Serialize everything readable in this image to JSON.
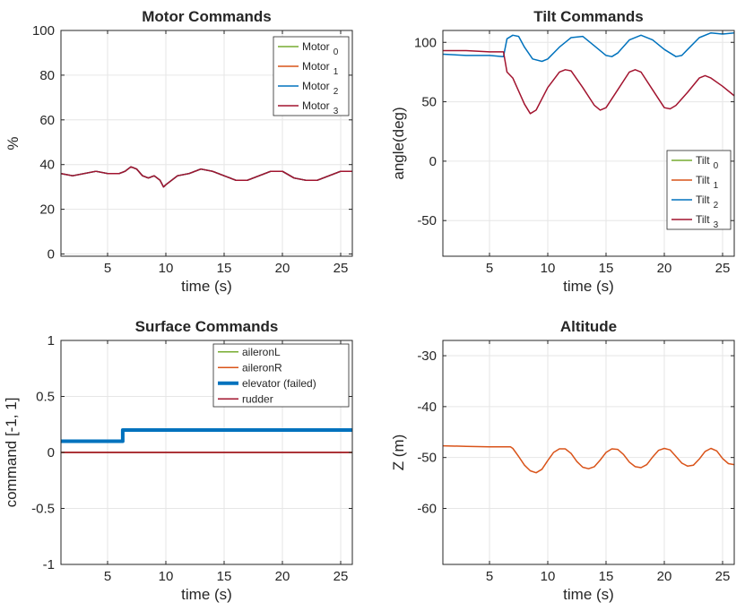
{
  "chart_data": [
    {
      "id": "motor",
      "type": "line",
      "title": "Motor Commands",
      "xlabel": "time (s)",
      "ylabel": "%",
      "xlim": [
        1,
        26
      ],
      "ylim": [
        -1,
        100
      ],
      "xticks": [
        5,
        10,
        15,
        20,
        25
      ],
      "xtick_labels": [
        "5",
        "10",
        "15",
        "20",
        "25"
      ],
      "yticks": [
        0,
        20,
        40,
        60,
        80,
        100
      ],
      "ytick_labels": [
        "0",
        "20",
        "40",
        "60",
        "80",
        "100"
      ],
      "legend_position": "top-right",
      "series": [
        {
          "name": "Motor",
          "sub": "0",
          "color": "#77AC30",
          "width": 1.5,
          "x": [
            1,
            2,
            3,
            4,
            5,
            6,
            6.5,
            7,
            7.5,
            8,
            8.5,
            9,
            9.5,
            9.8,
            10,
            10.5,
            11,
            12,
            13,
            14,
            15,
            16,
            17,
            18,
            19,
            20,
            21,
            22,
            23,
            24,
            25,
            26
          ],
          "y": [
            36,
            35,
            36,
            37,
            36,
            36,
            37,
            39,
            38,
            35,
            34,
            35,
            33,
            30,
            31,
            33,
            35,
            36,
            38,
            37,
            35,
            33,
            33,
            35,
            37,
            37,
            34,
            33,
            33,
            35,
            37,
            37
          ]
        },
        {
          "name": "Motor",
          "sub": "1",
          "color": "#D95319",
          "width": 1.5,
          "x": [
            1,
            2,
            3,
            4,
            5,
            6,
            6.5,
            7,
            7.5,
            8,
            8.5,
            9,
            9.5,
            9.8,
            10,
            10.5,
            11,
            12,
            13,
            14,
            15,
            16,
            17,
            18,
            19,
            20,
            21,
            22,
            23,
            24,
            25,
            26
          ],
          "y": [
            36,
            35,
            36,
            37,
            36,
            36,
            37,
            39,
            38,
            35,
            34,
            35,
            33,
            30,
            31,
            33,
            35,
            36,
            38,
            37,
            35,
            33,
            33,
            35,
            37,
            37,
            34,
            33,
            33,
            35,
            37,
            37
          ]
        },
        {
          "name": "Motor",
          "sub": "2",
          "color": "#0072BD",
          "width": 1.5,
          "x": [
            1,
            2,
            3,
            4,
            5,
            6,
            6.5,
            7,
            7.5,
            8,
            8.5,
            9,
            9.5,
            9.8,
            10,
            10.5,
            11,
            12,
            13,
            14,
            15,
            16,
            17,
            18,
            19,
            20,
            21,
            22,
            23,
            24,
            25,
            26
          ],
          "y": [
            36,
            35,
            36,
            37,
            36,
            36,
            37,
            39,
            38,
            35,
            34,
            35,
            33,
            30,
            31,
            33,
            35,
            36,
            38,
            37,
            35,
            33,
            33,
            35,
            37,
            37,
            34,
            33,
            33,
            35,
            37,
            37
          ]
        },
        {
          "name": "Motor",
          "sub": "3",
          "color": "#A2142F",
          "width": 1.5,
          "x": [
            1,
            2,
            3,
            4,
            5,
            6,
            6.5,
            7,
            7.5,
            8,
            8.5,
            9,
            9.5,
            9.8,
            10,
            10.5,
            11,
            12,
            13,
            14,
            15,
            16,
            17,
            18,
            19,
            20,
            21,
            22,
            23,
            24,
            25,
            26
          ],
          "y": [
            36,
            35,
            36,
            37,
            36,
            36,
            37,
            39,
            38,
            35,
            34,
            35,
            33,
            30,
            31,
            33,
            35,
            36,
            38,
            37,
            35,
            33,
            33,
            35,
            37,
            37,
            34,
            33,
            33,
            35,
            37,
            37
          ]
        }
      ]
    },
    {
      "id": "tilt",
      "type": "line",
      "title": "Tilt Commands",
      "xlabel": "time (s)",
      "ylabel": "angle(deg)",
      "xlim": [
        1,
        26
      ],
      "ylim": [
        -80,
        110
      ],
      "xticks": [
        5,
        10,
        15,
        20,
        25
      ],
      "xtick_labels": [
        "5",
        "10",
        "15",
        "20",
        "25"
      ],
      "yticks": [
        -50,
        0,
        50,
        100
      ],
      "ytick_labels": [
        "-50",
        "0",
        "50",
        "100"
      ],
      "legend_position": "bottom-right",
      "series": [
        {
          "name": "Tilt",
          "sub": "0",
          "color": "#77AC30",
          "width": 1.5,
          "x": [],
          "y": []
        },
        {
          "name": "Tilt",
          "sub": "1",
          "color": "#D95319",
          "width": 1.5,
          "x": [],
          "y": []
        },
        {
          "name": "Tilt",
          "sub": "2",
          "color": "#0072BD",
          "width": 1.5,
          "x": [
            1,
            3,
            5,
            6.2,
            6.5,
            7,
            7.5,
            8,
            8.7,
            9.5,
            10,
            11,
            12,
            13,
            14,
            15,
            15.5,
            16,
            17,
            18,
            19,
            20,
            21,
            21.5,
            22,
            23,
            24,
            25,
            26
          ],
          "y": [
            90,
            89,
            89,
            88,
            103,
            106,
            105,
            96,
            86,
            84,
            86,
            96,
            104,
            105,
            97,
            89,
            88,
            91,
            102,
            106,
            102,
            94,
            88,
            89,
            94,
            104,
            108,
            107,
            108
          ]
        },
        {
          "name": "Tilt",
          "sub": "3",
          "color": "#A2142F",
          "width": 1.5,
          "x": [
            1,
            3,
            5,
            6.2,
            6.5,
            7,
            8,
            8.5,
            9,
            10,
            11,
            11.5,
            12,
            13,
            14,
            14.5,
            15,
            16,
            17,
            17.5,
            18,
            19,
            20,
            20.5,
            21,
            22,
            23,
            23.5,
            24,
            25,
            26
          ],
          "y": [
            93,
            93,
            92,
            92,
            75,
            70,
            48,
            40,
            43,
            62,
            75,
            77,
            76,
            62,
            47,
            43,
            45,
            60,
            75,
            77,
            75,
            60,
            45,
            44,
            47,
            58,
            70,
            72,
            70,
            63,
            55
          ]
        }
      ]
    },
    {
      "id": "surface",
      "type": "line",
      "title": "Surface Commands",
      "xlabel": "time (s)",
      "ylabel": "command [-1, 1]",
      "xlim": [
        1,
        26
      ],
      "ylim": [
        -1,
        1
      ],
      "xticks": [
        5,
        10,
        15,
        20,
        25
      ],
      "xtick_labels": [
        "5",
        "10",
        "15",
        "20",
        "25"
      ],
      "yticks": [
        -1,
        -0.5,
        0,
        0.5,
        1
      ],
      "ytick_labels": [
        "-1",
        "-0.5",
        "0",
        "0.5",
        "1"
      ],
      "legend_position": "top-right",
      "series": [
        {
          "name": "aileronL",
          "sub": "",
          "color": "#77AC30",
          "width": 1.5,
          "x": [
            1,
            26
          ],
          "y": [
            0,
            0
          ]
        },
        {
          "name": "aileronR",
          "sub": "",
          "color": "#D95319",
          "width": 1.5,
          "x": [
            1,
            26
          ],
          "y": [
            0,
            0
          ]
        },
        {
          "name": "elevator (failed)",
          "sub": "",
          "color": "#0072BD",
          "width": 4,
          "bold": true,
          "x": [
            1,
            6.3,
            6.3,
            26
          ],
          "y": [
            0.1,
            0.1,
            0.2,
            0.2
          ]
        },
        {
          "name": "rudder",
          "sub": "",
          "color": "#A2142F",
          "width": 1.5,
          "x": [
            1,
            26
          ],
          "y": [
            0,
            0
          ]
        }
      ]
    },
    {
      "id": "altitude",
      "type": "line",
      "title": "Altitude",
      "xlabel": "time (s)",
      "ylabel": "Z (m)",
      "xlim": [
        1,
        26
      ],
      "ylim": [
        -71,
        -27
      ],
      "xticks": [
        5,
        10,
        15,
        20,
        25
      ],
      "xtick_labels": [
        "5",
        "10",
        "15",
        "20",
        "25"
      ],
      "yticks": [
        -60,
        -50,
        -40,
        -30
      ],
      "ytick_labels": [
        "-60",
        "-50",
        "-40",
        "-30"
      ],
      "legend_position": "none",
      "series": [
        {
          "name": "Z",
          "sub": "",
          "color": "#D95319",
          "width": 1.5,
          "x": [
            1,
            3,
            5,
            6.8,
            7,
            7.5,
            8,
            8.5,
            9,
            9.5,
            10,
            10.5,
            11,
            11.5,
            12,
            12.5,
            13,
            13.5,
            14,
            14.5,
            15,
            15.5,
            16,
            16.5,
            17,
            17.5,
            18,
            18.5,
            19,
            19.5,
            20,
            20.5,
            21,
            21.5,
            22,
            22.5,
            23,
            23.5,
            24,
            24.5,
            25,
            25.5,
            26
          ],
          "y": [
            -47.7,
            -47.8,
            -47.9,
            -47.9,
            -48.2,
            -49.8,
            -51.5,
            -52.6,
            -53,
            -52.3,
            -50.6,
            -49,
            -48.3,
            -48.3,
            -49.2,
            -50.8,
            -51.9,
            -52.2,
            -51.8,
            -50.5,
            -49,
            -48.3,
            -48.4,
            -49.4,
            -50.9,
            -51.8,
            -52,
            -51.4,
            -49.9,
            -48.6,
            -48.2,
            -48.5,
            -49.8,
            -51.1,
            -51.7,
            -51.5,
            -50.3,
            -48.8,
            -48.2,
            -48.7,
            -50.2,
            -51.2,
            -51.4
          ]
        }
      ]
    }
  ]
}
